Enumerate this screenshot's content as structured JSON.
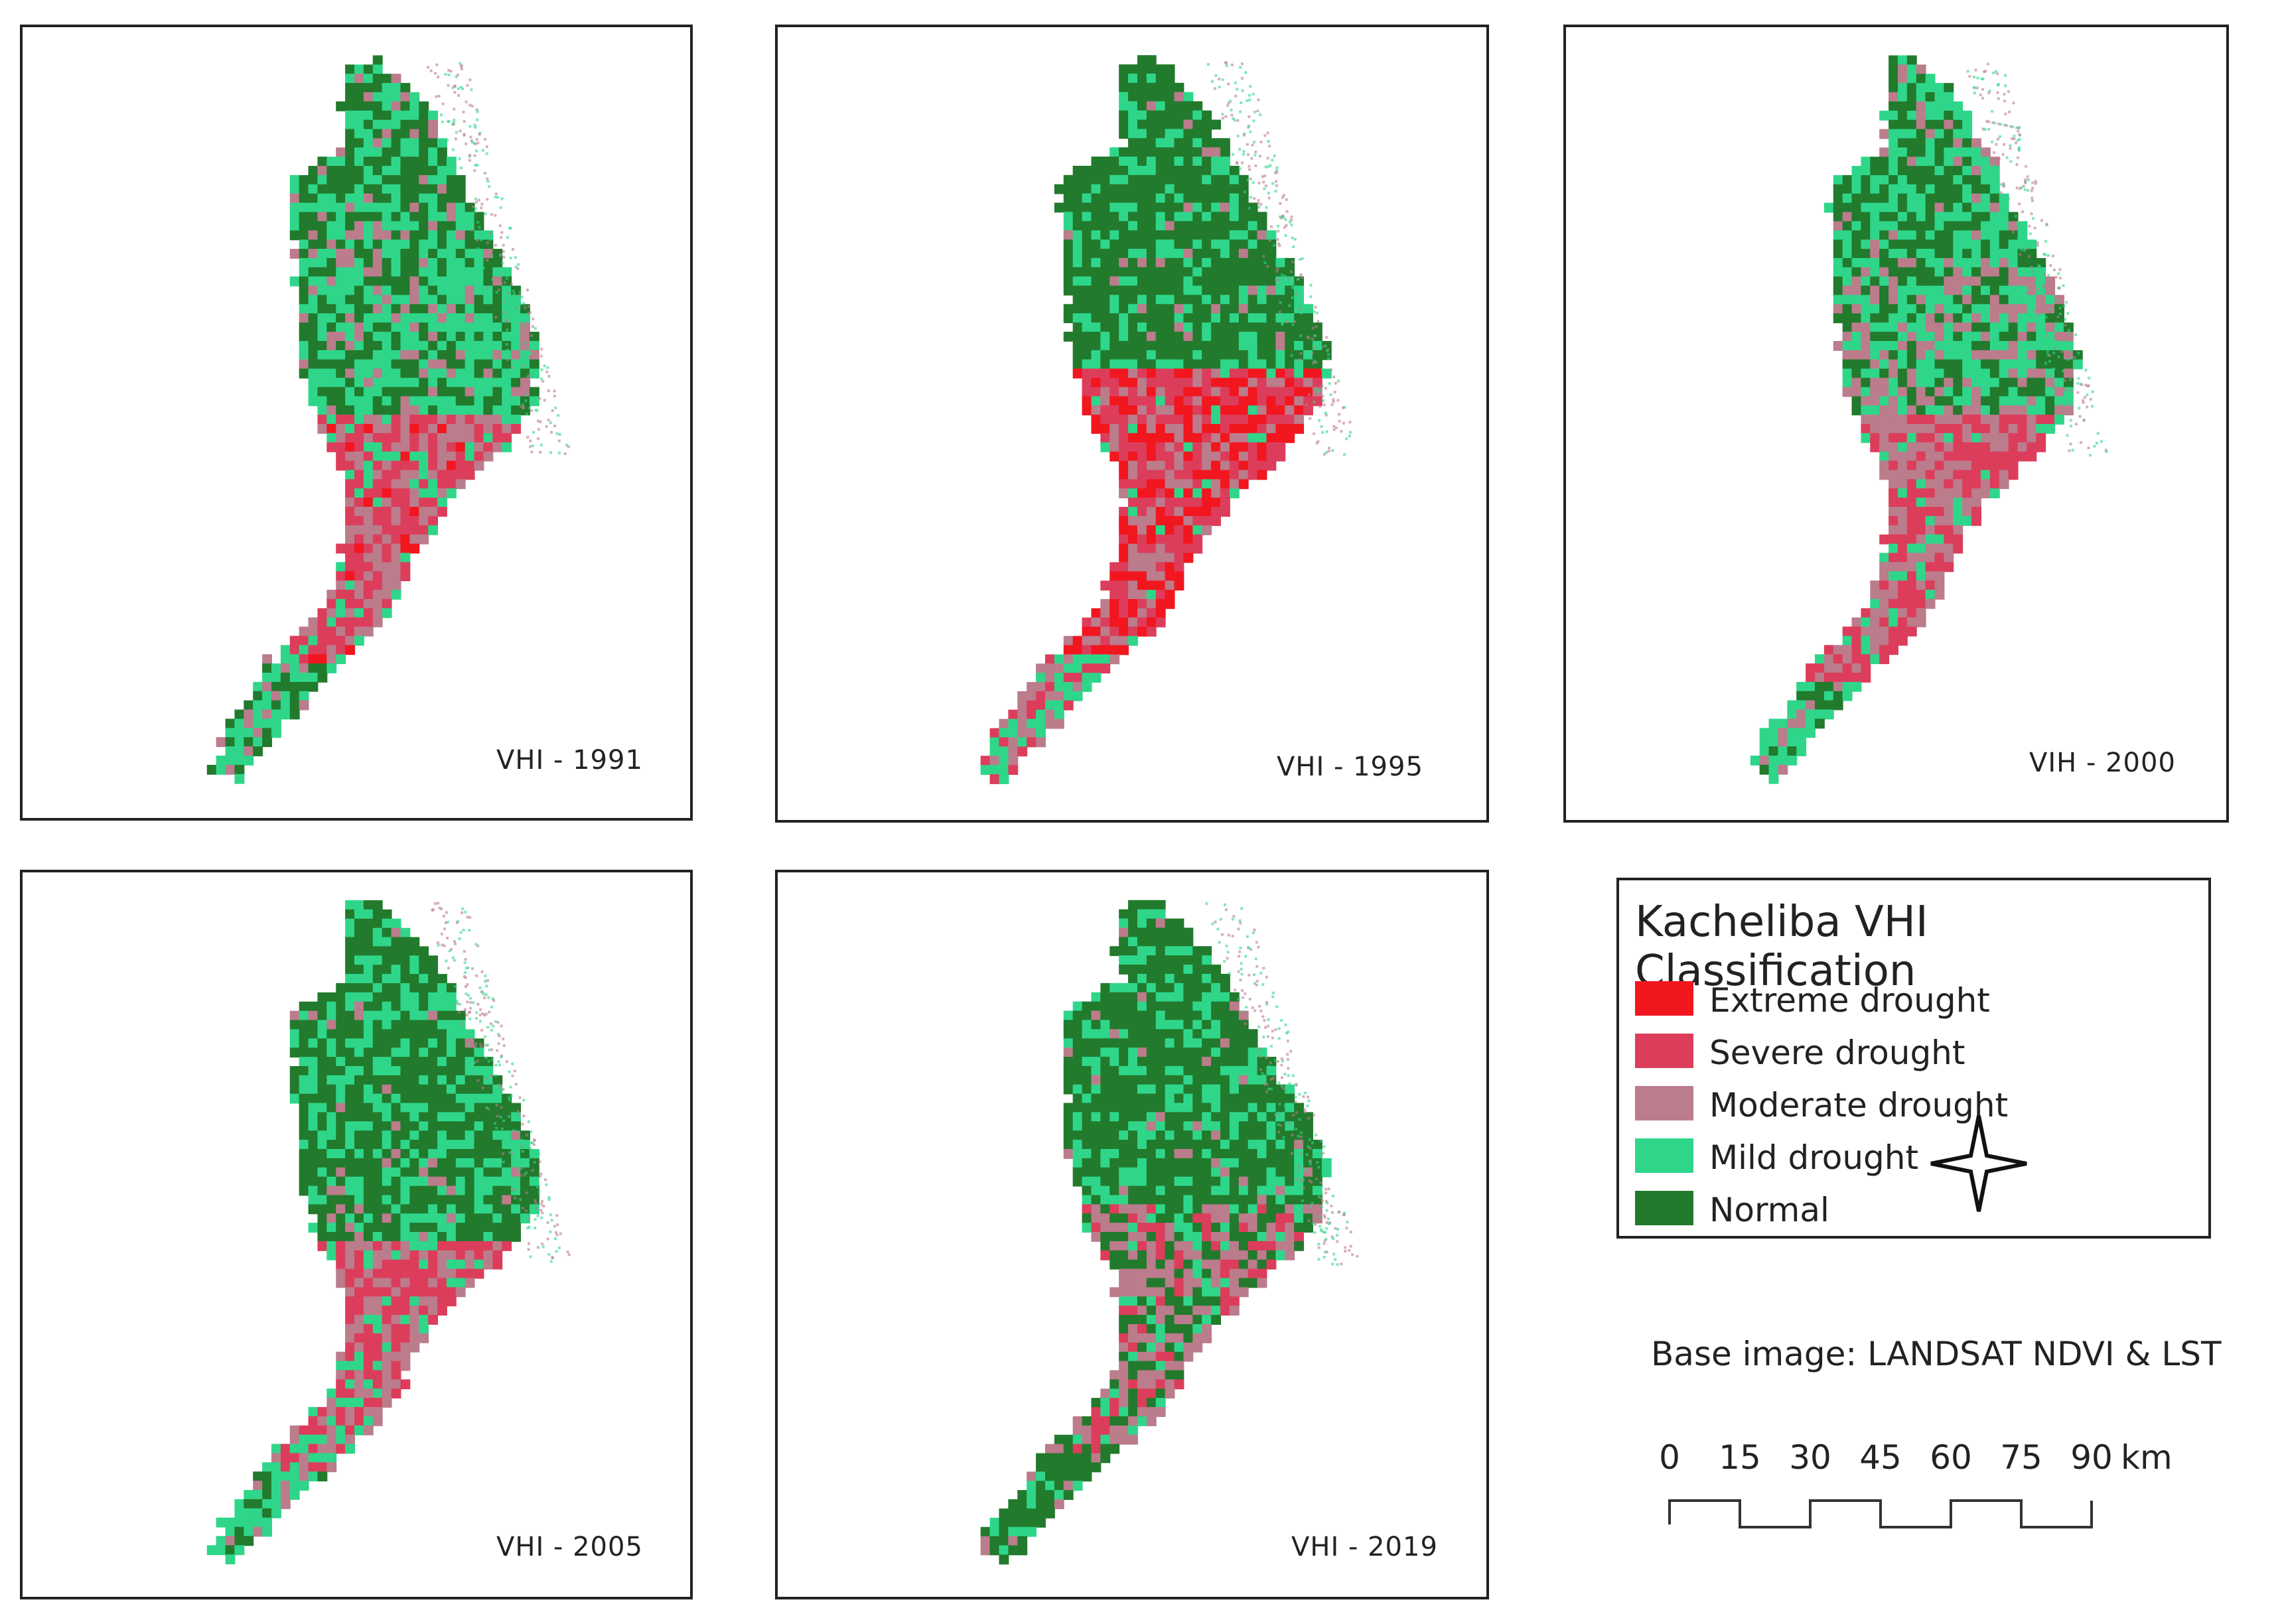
{
  "panels": [
    {
      "label": "VHI - 1991",
      "variant": "v1991"
    },
    {
      "label": "VHI - 1995",
      "variant": "v1995"
    },
    {
      "label": "VIH - 2000",
      "variant": "v2000"
    },
    {
      "label": "VHI - 2005",
      "variant": "v2005"
    },
    {
      "label": "VHI - 2019",
      "variant": "v2019"
    }
  ],
  "legend": {
    "title": "Kacheliba VHI Classification",
    "items": [
      {
        "label": "Extreme drought",
        "color": "#f2161f"
      },
      {
        "label": "Severe drought",
        "color": "#dc3d5b"
      },
      {
        "label": "Moderate drought",
        "color": "#bb7c8c"
      },
      {
        "label": "Mild drought",
        "color": "#2fd68a"
      },
      {
        "label": "Normal",
        "color": "#227a2c"
      }
    ]
  },
  "compass_icon": "north-arrow-star-icon",
  "base_image": "Base image: LANDSAT NDVI & LST",
  "scale": {
    "ticks": [
      "0",
      "15",
      "30",
      "45",
      "60",
      "75",
      "90"
    ],
    "unit": "km"
  }
}
